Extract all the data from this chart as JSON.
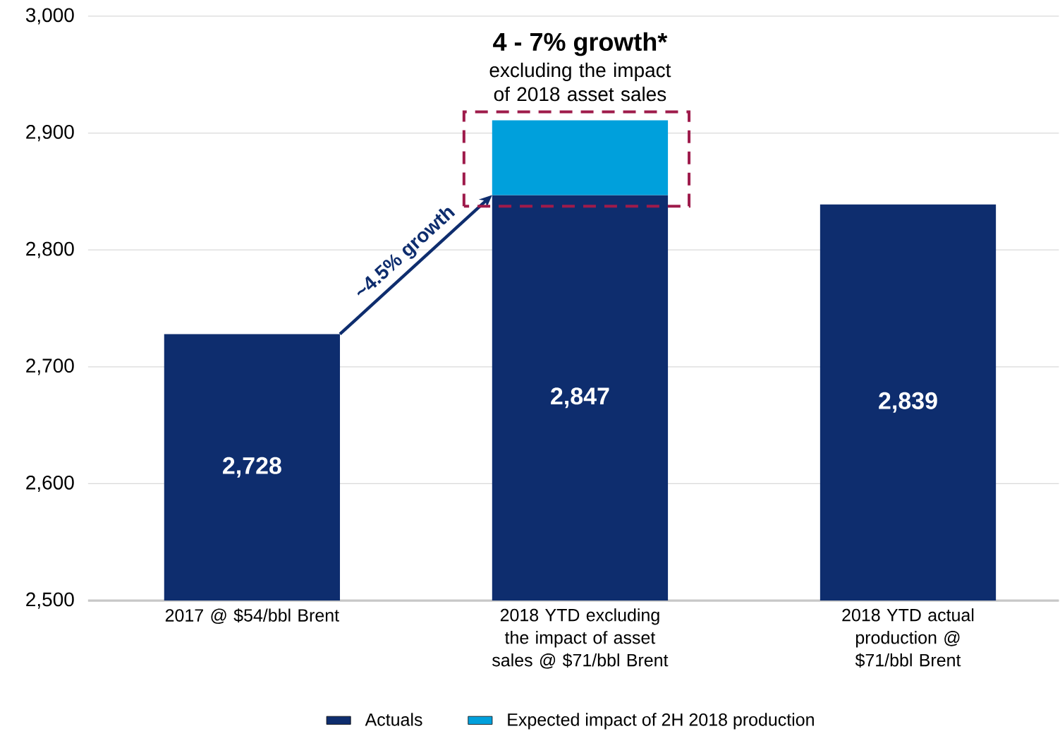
{
  "chart_data": {
    "type": "bar",
    "categories": [
      "2017 @ $54/bbl Brent",
      "2018 YTD excluding the impact of asset sales @ $71/bbl Brent",
      "2018 YTD actual production @ $71/bbl Brent"
    ],
    "series": [
      {
        "name": "Actuals",
        "color": "#0e2d6e",
        "values": [
          2728,
          2847,
          2839
        ],
        "value_labels": [
          "2,728",
          "2,847",
          "2,839"
        ]
      },
      {
        "name": "Expected impact of 2H 2018 production",
        "color": "#00a0dc",
        "values": [
          null,
          64,
          null
        ],
        "base": [
          null,
          2847,
          null
        ]
      }
    ],
    "ylim": [
      2500,
      3000
    ],
    "yticks": [
      {
        "value": 2500,
        "label": "2,500"
      },
      {
        "value": 2600,
        "label": "2,600"
      },
      {
        "value": 2700,
        "label": "2,700"
      },
      {
        "value": 2800,
        "label": "2,800"
      },
      {
        "value": 2900,
        "label": "2,900"
      },
      {
        "value": 3000,
        "label": "3,000"
      }
    ],
    "grid": "y",
    "legend": "bottom",
    "annotations": [
      "4 - 7% growth*",
      "excluding the impact of 2018 asset sales",
      "~4.5% growth"
    ]
  }
}
